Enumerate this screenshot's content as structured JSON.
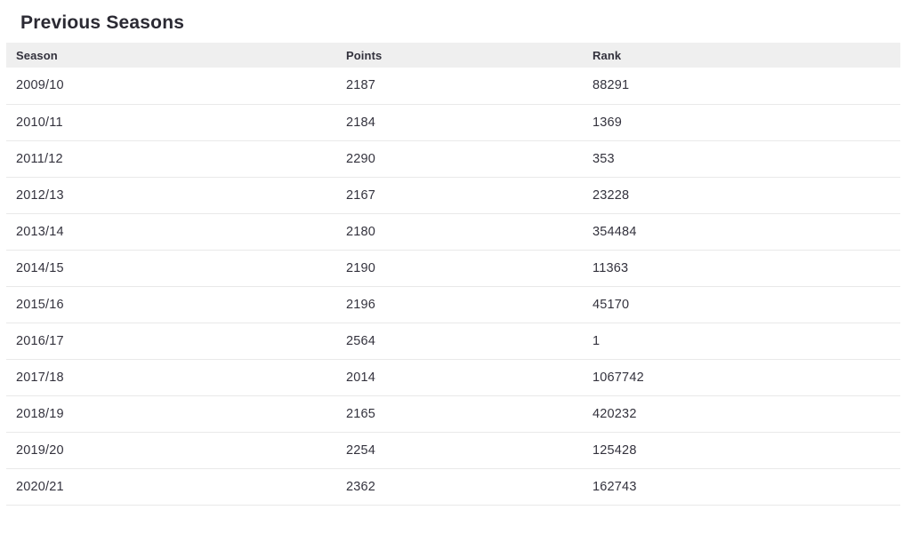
{
  "page": {
    "title": "Previous Seasons"
  },
  "table": {
    "columns": [
      "Season",
      "Points",
      "Rank"
    ],
    "rows": [
      {
        "season": "2009/10",
        "points": "2187",
        "rank": "88291"
      },
      {
        "season": "2010/11",
        "points": "2184",
        "rank": "1369"
      },
      {
        "season": "2011/12",
        "points": "2290",
        "rank": "353"
      },
      {
        "season": "2012/13",
        "points": "2167",
        "rank": "23228"
      },
      {
        "season": "2013/14",
        "points": "2180",
        "rank": "354484"
      },
      {
        "season": "2014/15",
        "points": "2190",
        "rank": "11363"
      },
      {
        "season": "2015/16",
        "points": "2196",
        "rank": "45170"
      },
      {
        "season": "2016/17",
        "points": "2564",
        "rank": "1"
      },
      {
        "season": "2017/18",
        "points": "2014",
        "rank": "1067742"
      },
      {
        "season": "2018/19",
        "points": "2165",
        "rank": "420232"
      },
      {
        "season": "2019/20",
        "points": "2254",
        "rank": "125428"
      },
      {
        "season": "2020/21",
        "points": "2362",
        "rank": "162743"
      }
    ]
  },
  "colors": {
    "page_bg": "#ffffff",
    "title_color": "#2b2a33",
    "text_color": "#33323d",
    "header_bg": "#efefef",
    "row_border": "#e9e9e9"
  }
}
